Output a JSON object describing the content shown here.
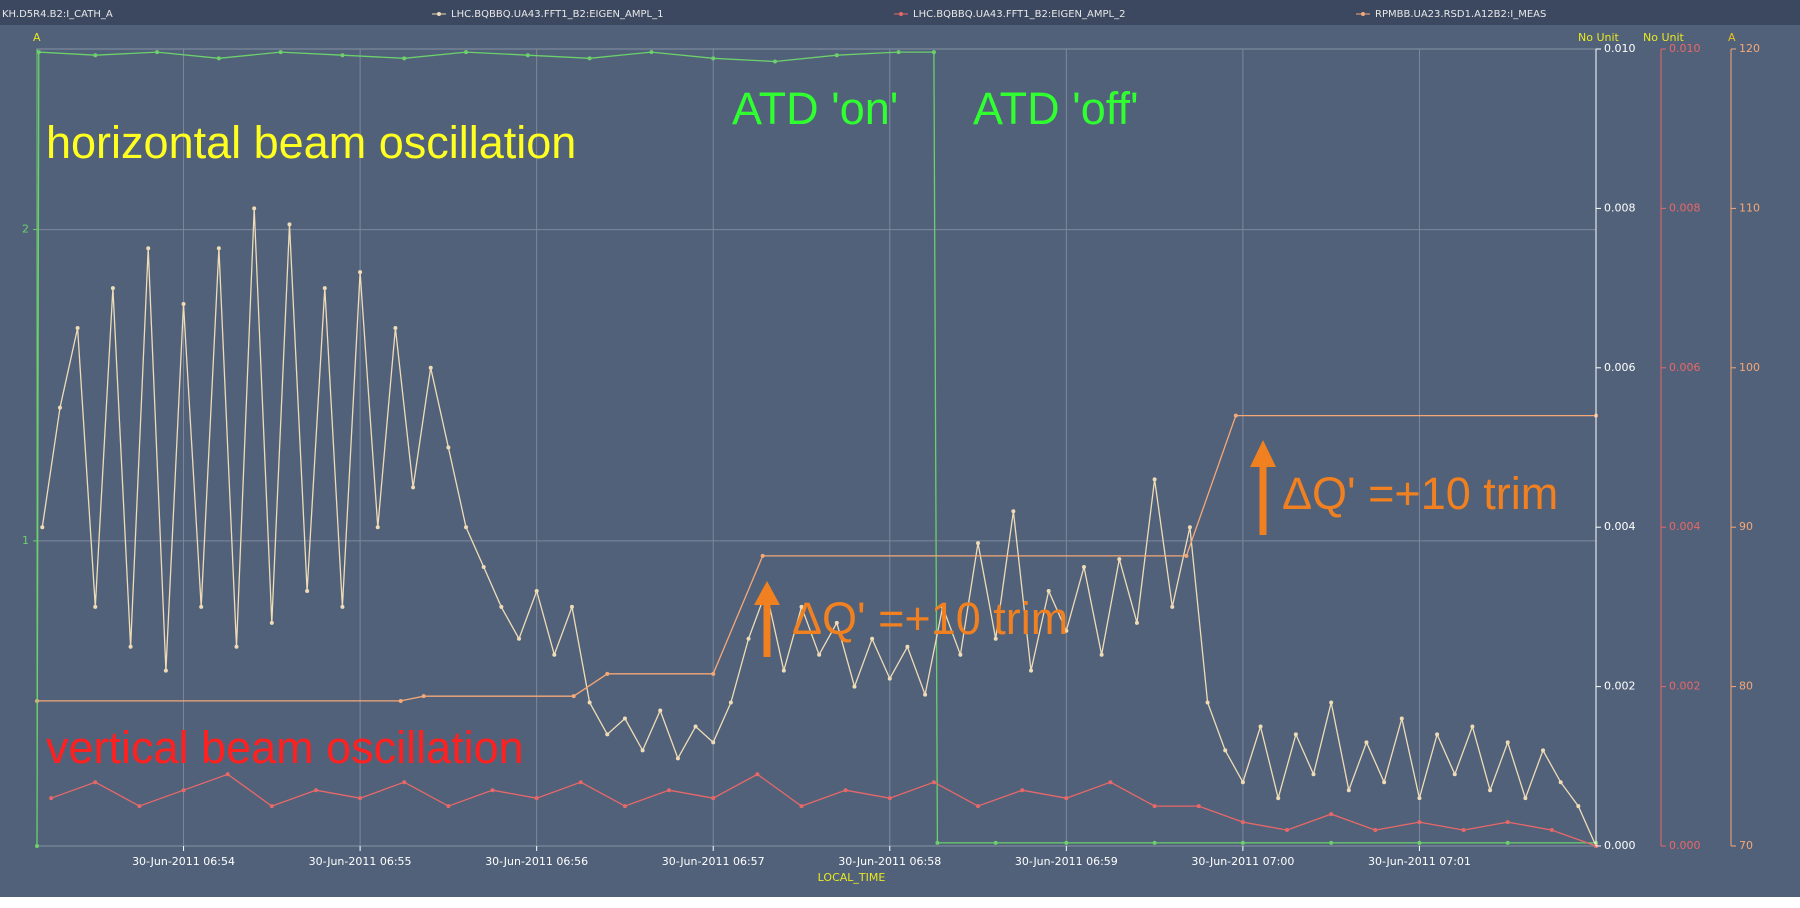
{
  "chart_data": {
    "type": "line",
    "x_label": "LOCAL_TIME",
    "xlim": [
      53.17,
      62.0
    ],
    "xticks": [
      {
        "value": 54,
        "label": "30-Jun-2011 06:54"
      },
      {
        "value": 55,
        "label": "30-Jun-2011 06:55"
      },
      {
        "value": 56,
        "label": "30-Jun-2011 06:56"
      },
      {
        "value": 57,
        "label": "30-Jun-2011 06:57"
      },
      {
        "value": 58,
        "label": "30-Jun-2011 06:58"
      },
      {
        "value": 59,
        "label": "30-Jun-2011 06:59"
      },
      {
        "value": 60,
        "label": "30-Jun-2011 07:00"
      },
      {
        "value": 61,
        "label": "30-Jun-2011 07:01"
      }
    ],
    "y_label": "A",
    "ylim": [
      0.02,
      2.58
    ],
    "yticks": [
      1,
      2
    ],
    "y2_label": "No Unit",
    "y2lim": [
      0,
      0.01
    ],
    "y2ticks": [
      {
        "value": 0,
        "label": "0.000"
      },
      0.002,
      0.004,
      0.006,
      0.008,
      {
        "value": 0.01,
        "label": "0.010"
      }
    ],
    "y3_label": "No Unit",
    "y3lim": [
      0,
      0.01
    ],
    "y3ticks": [
      {
        "value": 0,
        "label": "0.000"
      },
      0.002,
      0.004,
      0.006,
      0.008,
      {
        "value": 0.01,
        "label": "0.010"
      }
    ],
    "y4_label": "A",
    "y4lim": [
      70,
      120
    ],
    "y4ticks": [
      70,
      80,
      90,
      100,
      110,
      120
    ],
    "grid": true,
    "series": [
      {
        "name": "KH.D5R4.B2:I_CATH_A",
        "color": "#6cd06c",
        "axis": "y",
        "x": [
          53.17,
          53.18,
          53.5,
          53.85,
          54.2,
          54.55,
          54.9,
          55.25,
          55.6,
          55.95,
          56.3,
          56.65,
          57.0,
          57.35,
          57.7,
          58.05,
          58.25,
          58.27,
          58.6,
          59.0,
          59.5,
          60.0,
          60.5,
          61.0,
          61.5,
          62.0
        ],
        "values": [
          0.02,
          2.57,
          2.56,
          2.57,
          2.55,
          2.57,
          2.56,
          2.55,
          2.57,
          2.56,
          2.55,
          2.57,
          2.55,
          2.54,
          2.56,
          2.57,
          2.57,
          0.03,
          0.03,
          0.03,
          0.03,
          0.03,
          0.03,
          0.03,
          0.03,
          0.03
        ]
      },
      {
        "name": "LHC.BQBBQ.UA43.FFT1_B2:EIGEN_AMPL_1",
        "color": "#efdcb6",
        "axis": "y2",
        "x": [
          53.2,
          53.3,
          53.4,
          53.5,
          53.6,
          53.7,
          53.8,
          53.9,
          54.0,
          54.1,
          54.2,
          54.3,
          54.4,
          54.5,
          54.6,
          54.7,
          54.8,
          54.9,
          55.0,
          55.1,
          55.2,
          55.3,
          55.4,
          55.5,
          55.6,
          55.7,
          55.8,
          55.9,
          56.0,
          56.1,
          56.2,
          56.3,
          56.4,
          56.5,
          56.6,
          56.7,
          56.8,
          56.9,
          57.0,
          57.1,
          57.2,
          57.3,
          57.4,
          57.5,
          57.6,
          57.7,
          57.8,
          57.9,
          58.0,
          58.1,
          58.2,
          58.3,
          58.4,
          58.5,
          58.6,
          58.7,
          58.8,
          58.9,
          59.0,
          59.1,
          59.2,
          59.3,
          59.4,
          59.5,
          59.6,
          59.7,
          59.8,
          59.9,
          60.0,
          60.1,
          60.2,
          60.3,
          60.4,
          60.5,
          60.6,
          60.7,
          60.8,
          60.9,
          61.0,
          61.1,
          61.2,
          61.3,
          61.4,
          61.5,
          61.6,
          61.7,
          61.8,
          61.9,
          62.0
        ],
        "values": [
          0.004,
          0.0055,
          0.0065,
          0.003,
          0.007,
          0.0025,
          0.0075,
          0.0022,
          0.0068,
          0.003,
          0.0075,
          0.0025,
          0.008,
          0.0028,
          0.0078,
          0.0032,
          0.007,
          0.003,
          0.0072,
          0.004,
          0.0065,
          0.0045,
          0.006,
          0.005,
          0.004,
          0.0035,
          0.003,
          0.0026,
          0.0032,
          0.0024,
          0.003,
          0.0018,
          0.0014,
          0.0016,
          0.0012,
          0.0017,
          0.0011,
          0.0015,
          0.0013,
          0.0018,
          0.0026,
          0.0032,
          0.0022,
          0.003,
          0.0024,
          0.0028,
          0.002,
          0.0026,
          0.0021,
          0.0025,
          0.0019,
          0.003,
          0.0024,
          0.0038,
          0.0026,
          0.0042,
          0.0022,
          0.0032,
          0.0027,
          0.0035,
          0.0024,
          0.0036,
          0.0028,
          0.0046,
          0.003,
          0.004,
          0.0018,
          0.0012,
          0.0008,
          0.0015,
          0.0006,
          0.0014,
          0.0009,
          0.0018,
          0.0007,
          0.0013,
          0.0008,
          0.0016,
          0.0006,
          0.0014,
          0.0009,
          0.0015,
          0.0007,
          0.0013,
          0.0006,
          0.0012,
          0.0008,
          0.0005,
          0
        ]
      },
      {
        "name": "LHC.BQBBQ.UA43.FFT1_B2:EIGEN_AMPL_2",
        "color": "#e86868",
        "axis": "y3",
        "x": [
          53.25,
          53.5,
          53.75,
          54.0,
          54.25,
          54.5,
          54.75,
          55.0,
          55.25,
          55.5,
          55.75,
          56.0,
          56.25,
          56.5,
          56.75,
          57.0,
          57.25,
          57.5,
          57.75,
          58.0,
          58.25,
          58.5,
          58.75,
          59.0,
          59.25,
          59.5,
          59.75,
          60.0,
          60.25,
          60.5,
          60.75,
          61.0,
          61.25,
          61.5,
          61.75,
          62.0
        ],
        "values": [
          0.0006,
          0.0008,
          0.0005,
          0.0007,
          0.0009,
          0.0005,
          0.0007,
          0.0006,
          0.0008,
          0.0005,
          0.0007,
          0.0006,
          0.0008,
          0.0005,
          0.0007,
          0.0006,
          0.0009,
          0.0005,
          0.0007,
          0.0006,
          0.0008,
          0.0005,
          0.0007,
          0.0006,
          0.0008,
          0.0005,
          0.0005,
          0.0003,
          0.0002,
          0.0004,
          0.0002,
          0.0003,
          0.0002,
          0.0003,
          0.0002,
          0
        ]
      },
      {
        "name": "RPMBB.UA23.RSD1.A12B2:I_MEAS",
        "color": "#f4a878",
        "axis": "y4",
        "x": [
          53.17,
          55.23,
          55.36,
          56.21,
          56.4,
          57.0,
          57.28,
          59.68,
          59.96,
          62.0
        ],
        "values": [
          79.1,
          79.1,
          79.4,
          79.4,
          80.8,
          80.8,
          88.2,
          88.2,
          97.0,
          97.0
        ]
      }
    ],
    "annotations": [
      {
        "text": "horizontal beam oscillation",
        "color": "#ffff20"
      },
      {
        "text": "vertical beam oscillation",
        "color": "#ff2020"
      },
      {
        "text": "ATD 'on'",
        "color": "#30ff30"
      },
      {
        "text": "ATD 'off'",
        "color": "#30ff30"
      },
      {
        "text": "ΔQ' =+10 trim",
        "color": "#f08020"
      },
      {
        "text": "ΔQ' =+10 trim",
        "color": "#f08020"
      }
    ]
  }
}
